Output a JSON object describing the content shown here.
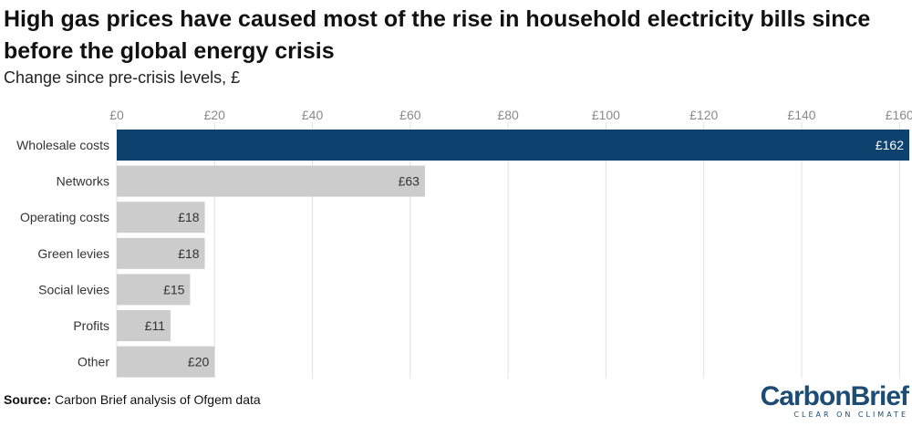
{
  "chart_data": {
    "type": "bar",
    "orientation": "horizontal",
    "title": "High gas prices have caused most of the rise in household electricity bills since before the global energy crisis",
    "subtitle": "Change since pre-crisis levels, £",
    "categories": [
      "Wholesale costs",
      "Networks",
      "Operating costs",
      "Green levies",
      "Social levies",
      "Profits",
      "Other"
    ],
    "values": [
      162,
      63,
      18,
      18,
      15,
      11,
      20
    ],
    "value_labels": [
      "£162",
      "£63",
      "£18",
      "£18",
      "£15",
      "£11",
      "£20"
    ],
    "xlim": [
      0,
      162
    ],
    "x_ticks": [
      0,
      20,
      40,
      60,
      80,
      100,
      120,
      140,
      160
    ],
    "x_tick_labels": [
      "£0",
      "£20",
      "£40",
      "£60",
      "£80",
      "£100",
      "£120",
      "£140",
      "£160"
    ],
    "axis_position": "top",
    "grid": true,
    "highlight_color": "#0e426e",
    "bar_color": "#cccccc"
  },
  "footer": {
    "source_label": "Source:",
    "source_text": "Carbon Brief analysis of Ofgem data"
  },
  "logo": {
    "name": "CarbonBrief",
    "tagline": "CLEAR ON CLIMATE"
  }
}
